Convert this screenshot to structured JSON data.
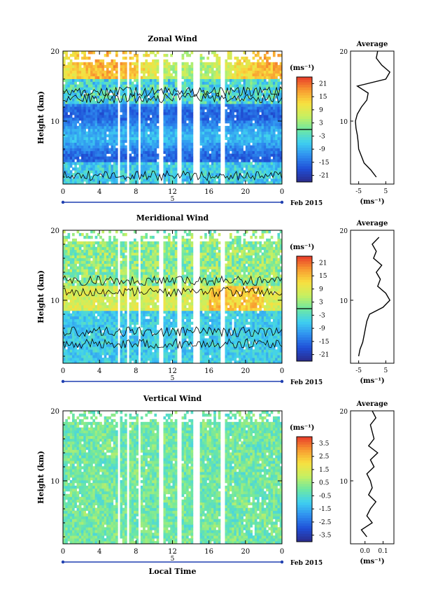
{
  "chart_data": [
    {
      "type": "heatmap",
      "title": "Zonal Wind",
      "xlabel": "",
      "ylabel": "Height (km)",
      "x_ticks": [
        "0",
        "4",
        "8",
        "12",
        "16",
        "20",
        "0"
      ],
      "y_ticks": [
        "10",
        "20"
      ],
      "xlim": [
        0,
        24
      ],
      "ylim": [
        1,
        20
      ],
      "date_label": "5",
      "date_suffix": "Feb 2015",
      "colorbar_unit": "(ms⁻¹)",
      "colorbar_ticks": [
        "21",
        "15",
        "9",
        "3",
        "-3",
        "-9",
        "-15",
        "-21"
      ],
      "colorbar_range": [
        -24,
        24
      ],
      "contour_level": 0,
      "data_gaps_local_time": [
        [
          5.9,
          6.2
        ],
        [
          6.9,
          7.3
        ],
        [
          8.3,
          8.5
        ],
        [
          10.4,
          11.0
        ],
        [
          12.6,
          13.0
        ],
        [
          14.3,
          15.0
        ],
        [
          17.3,
          17.7
        ]
      ],
      "profile": {
        "title": "Average",
        "xlabel": "(ms⁻¹)",
        "x_ticks": [
          "-5",
          "5"
        ],
        "xlim": [
          -8,
          8
        ],
        "y_ticks": [
          "10",
          "20"
        ],
        "height": [
          2,
          3,
          4,
          5,
          6,
          7,
          8,
          9,
          10,
          11,
          12,
          13,
          14,
          15,
          16,
          17,
          18,
          19,
          20
        ],
        "value": [
          1.5,
          -0.5,
          -3.0,
          -4.0,
          -5.0,
          -5.2,
          -5.5,
          -6.0,
          -6.2,
          -5.5,
          -4.0,
          -2.0,
          -1.5,
          -5.5,
          5.0,
          6.5,
          3.5,
          1.5,
          2.0
        ]
      }
    },
    {
      "type": "heatmap",
      "title": "Meridional Wind",
      "xlabel": "",
      "ylabel": "Height (km)",
      "x_ticks": [
        "0",
        "4",
        "8",
        "12",
        "16",
        "20",
        "0"
      ],
      "y_ticks": [
        "10",
        "20"
      ],
      "xlim": [
        0,
        24
      ],
      "ylim": [
        1,
        20
      ],
      "date_label": "5",
      "date_suffix": "Feb 2015",
      "colorbar_unit": "(ms⁻¹)",
      "colorbar_ticks": [
        "21",
        "15",
        "9",
        "3",
        "-3",
        "-9",
        "-15",
        "-21"
      ],
      "colorbar_range": [
        -24,
        24
      ],
      "contour_level": 0,
      "data_gaps_local_time": [
        [
          5.9,
          6.2
        ],
        [
          6.9,
          7.3
        ],
        [
          8.3,
          8.5
        ],
        [
          10.4,
          11.0
        ],
        [
          12.6,
          13.0
        ],
        [
          14.3,
          15.0
        ],
        [
          17.3,
          17.7
        ]
      ],
      "profile": {
        "title": "Average",
        "xlabel": "(ms⁻¹)",
        "x_ticks": [
          "-5",
          "5"
        ],
        "xlim": [
          -8,
          8
        ],
        "y_ticks": [
          "10",
          "20"
        ],
        "height": [
          2,
          3,
          4,
          5,
          6,
          7,
          8,
          9,
          10,
          11,
          12,
          13,
          14,
          15,
          16,
          17,
          18,
          19
        ],
        "value": [
          -5.0,
          -4.5,
          -3.5,
          -3.0,
          -2.5,
          -2.0,
          -1.0,
          4.0,
          6.5,
          5.0,
          2.0,
          3.0,
          1.5,
          3.5,
          0.5,
          1.5,
          0.0,
          2.5
        ]
      }
    },
    {
      "type": "heatmap",
      "title": "Vertical Wind",
      "xlabel": "Local Time",
      "ylabel": "Height (km)",
      "x_ticks": [
        "0",
        "4",
        "8",
        "12",
        "16",
        "20",
        "0"
      ],
      "y_ticks": [
        "10",
        "20"
      ],
      "xlim": [
        0,
        24
      ],
      "ylim": [
        1,
        20
      ],
      "date_label": "5",
      "date_suffix": "Feb 2015",
      "colorbar_unit": "(ms⁻¹)",
      "colorbar_ticks": [
        "3.5",
        "2.5",
        "1.5",
        "0.5",
        "-0.5",
        "-1.5",
        "-2.5",
        "-3.5"
      ],
      "colorbar_range": [
        -4,
        4
      ],
      "data_gaps_local_time": [
        [
          5.9,
          6.2
        ],
        [
          6.9,
          7.3
        ],
        [
          8.3,
          8.5
        ],
        [
          10.4,
          11.0
        ],
        [
          12.6,
          13.0
        ],
        [
          14.3,
          15.0
        ],
        [
          17.3,
          17.7
        ]
      ],
      "profile": {
        "title": "Average",
        "xlabel": "(ms⁻¹)",
        "x_ticks": [
          "0.0",
          "0.1"
        ],
        "xlim": [
          -0.08,
          0.16
        ],
        "y_ticks": [
          "10",
          "20"
        ],
        "height": [
          2,
          3,
          4,
          5,
          6,
          7,
          8,
          9,
          10,
          11,
          12,
          13,
          14,
          15,
          16,
          17,
          18,
          19,
          20
        ],
        "value": [
          0.01,
          -0.02,
          0.04,
          0.01,
          0.03,
          0.06,
          0.02,
          0.04,
          0.03,
          0.01,
          0.05,
          0.03,
          0.07,
          0.02,
          0.05,
          0.04,
          0.03,
          0.06,
          0.04
        ]
      }
    }
  ],
  "colors": {
    "scale": [
      "#2b2b8c",
      "#1f4fd6",
      "#2f8ff0",
      "#3fd0f0",
      "#6fe8a0",
      "#c8f060",
      "#f8e040",
      "#f89a30",
      "#e83a2a"
    ],
    "axis": "#000000",
    "timeline": "#1f3fb0",
    "contour": "#000000",
    "profile_line": "#000000"
  }
}
